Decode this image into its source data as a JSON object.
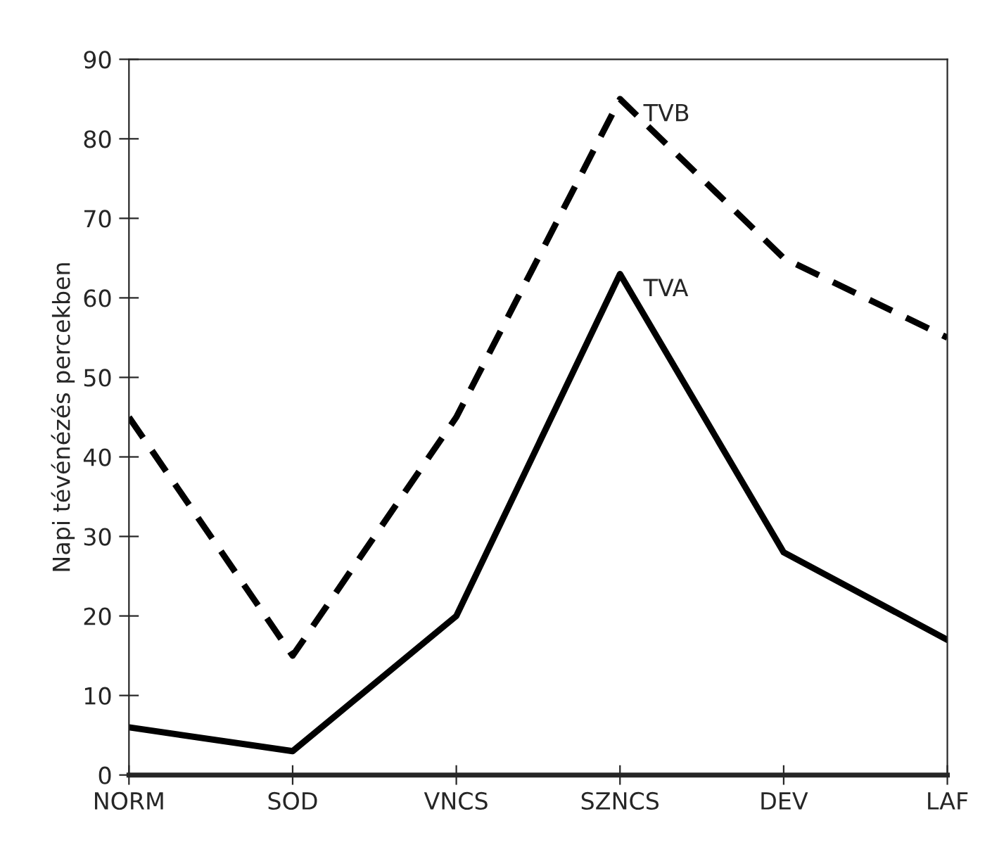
{
  "chart_data": {
    "type": "line",
    "ylabel": "Napi tévénézés percekben",
    "categories": [
      "NORM",
      "SOD",
      "VNCS",
      "SZNCS",
      "DEV",
      "LAF"
    ],
    "series": [
      {
        "name": "TVA",
        "color": "#000000",
        "line_style": "solid",
        "values": [
          6,
          3,
          20,
          63,
          28,
          17
        ]
      },
      {
        "name": "TVB",
        "color": "#000000",
        "line_style": "dashed",
        "values": [
          45,
          15,
          45,
          85,
          65,
          55
        ]
      }
    ],
    "ylim": [
      0,
      90
    ],
    "yticks": [
      0,
      10,
      20,
      30,
      40,
      50,
      60,
      70,
      80,
      90
    ],
    "grid": false,
    "legend": false,
    "marker": "none"
  }
}
